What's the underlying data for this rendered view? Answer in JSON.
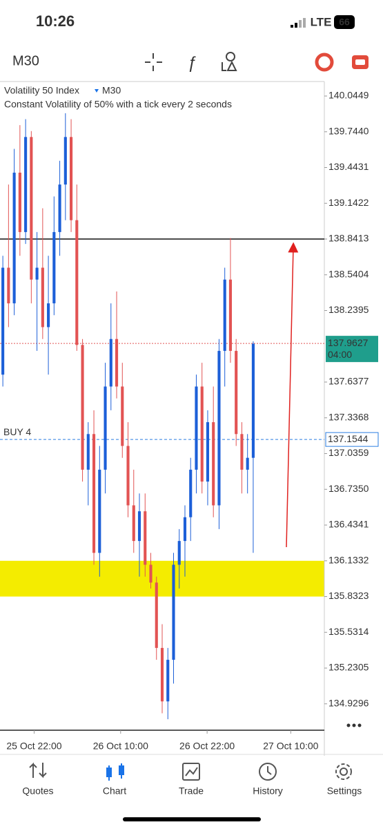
{
  "status_bar": {
    "time": "10:26",
    "network": "LTE",
    "battery": "66"
  },
  "toolbar": {
    "timeframe": "M30"
  },
  "chart_data": {
    "type": "candlestick",
    "title": "Volatility 50 Index",
    "timeframe": "M30",
    "subtitle": "Constant Volatility of 50% with a tick every 2 seconds",
    "up_color": "#1c5fd8",
    "down_color": "#e25353",
    "open": [
      137.7,
      138.6,
      138.3,
      139.4,
      138.9,
      139.7,
      138.5,
      138.6,
      138.1,
      138.3,
      138.9,
      139.3,
      139.7,
      139.0,
      137.95,
      136.9,
      137.2,
      136.2,
      136.9,
      137.6,
      138.0,
      137.6,
      137.1,
      136.6,
      136.3,
      136.55,
      136.1,
      135.95,
      135.4,
      134.95,
      135.3,
      136.1,
      136.3,
      136.5,
      136.9,
      137.6,
      136.8,
      137.3,
      136.6,
      137.9,
      138.5,
      137.9,
      137.2,
      136.9,
      137.0
    ],
    "high": [
      138.7,
      139.3,
      139.6,
      139.8,
      139.85,
      139.75,
      138.9,
      139.1,
      138.7,
      139.2,
      139.5,
      139.9,
      139.85,
      139.3,
      138.0,
      137.3,
      137.4,
      137.1,
      137.8,
      138.3,
      138.4,
      137.8,
      137.3,
      136.9,
      136.7,
      136.7,
      136.2,
      136.0,
      135.6,
      135.4,
      136.2,
      136.4,
      136.6,
      137.0,
      137.7,
      137.8,
      137.4,
      137.6,
      138.0,
      138.6,
      138.85,
      138.0,
      137.3,
      137.2,
      137.98
    ],
    "low": [
      137.6,
      138.1,
      138.2,
      138.7,
      138.8,
      138.3,
      137.9,
      138.0,
      137.7,
      138.2,
      138.7,
      139.0,
      138.9,
      137.9,
      136.8,
      136.6,
      136.1,
      136.0,
      136.7,
      137.4,
      137.5,
      137.0,
      136.5,
      136.2,
      136.0,
      136.0,
      135.9,
      135.3,
      134.85,
      134.8,
      135.1,
      135.9,
      136.0,
      136.3,
      136.7,
      136.7,
      136.6,
      136.5,
      136.4,
      137.6,
      137.8,
      137.1,
      136.7,
      136.7,
      136.2
    ],
    "close": [
      138.6,
      138.3,
      139.4,
      138.9,
      139.7,
      138.5,
      138.6,
      138.1,
      138.3,
      138.9,
      139.3,
      139.7,
      139.0,
      137.95,
      136.9,
      137.2,
      136.2,
      136.9,
      137.6,
      138.0,
      137.6,
      137.1,
      136.6,
      136.3,
      136.55,
      136.1,
      135.95,
      135.4,
      134.95,
      135.3,
      136.1,
      136.3,
      136.5,
      136.9,
      137.6,
      136.8,
      137.3,
      136.6,
      137.9,
      138.5,
      137.9,
      137.2,
      136.9,
      137.0,
      137.96
    ],
    "xlim": [
      -0.5,
      56.5
    ],
    "xticks": [
      {
        "value": 5.5,
        "label": "25 Oct 22:00"
      },
      {
        "value": 20.7,
        "label": "26 Oct 10:00"
      },
      {
        "value": 35.9,
        "label": "26 Oct 22:00"
      },
      {
        "value": 50.6,
        "label": "27 Oct 10:00"
      }
    ],
    "ylim": [
      134.69,
      140.167
    ],
    "yticks": [
      140.0449,
      {
        "value": 139.744,
        "label": "139.7440"
      },
      139.4431,
      139.1422,
      138.8413,
      138.5404,
      138.2395,
      137.6377,
      137.3368,
      137.0359,
      {
        "value": 136.735,
        "label": "136.7350"
      },
      136.4341,
      136.1332,
      135.8323,
      135.5314,
      135.2305,
      134.9296
    ],
    "resistance": {
      "value": 138.8413,
      "color": "#111111"
    },
    "current_price": {
      "value": 137.9627,
      "countdown": "04:00",
      "color": "#1f9e8c"
    },
    "order": {
      "label": "BUY 4",
      "value": 137.1544,
      "color": "#2a7de1"
    },
    "zone": {
      "from": 135.8323,
      "to": 136.1332,
      "color": "#f4ec00"
    }
  },
  "nav": {
    "tabs": [
      "Quotes",
      "Chart",
      "Trade",
      "History",
      "Settings"
    ],
    "active": 1
  }
}
